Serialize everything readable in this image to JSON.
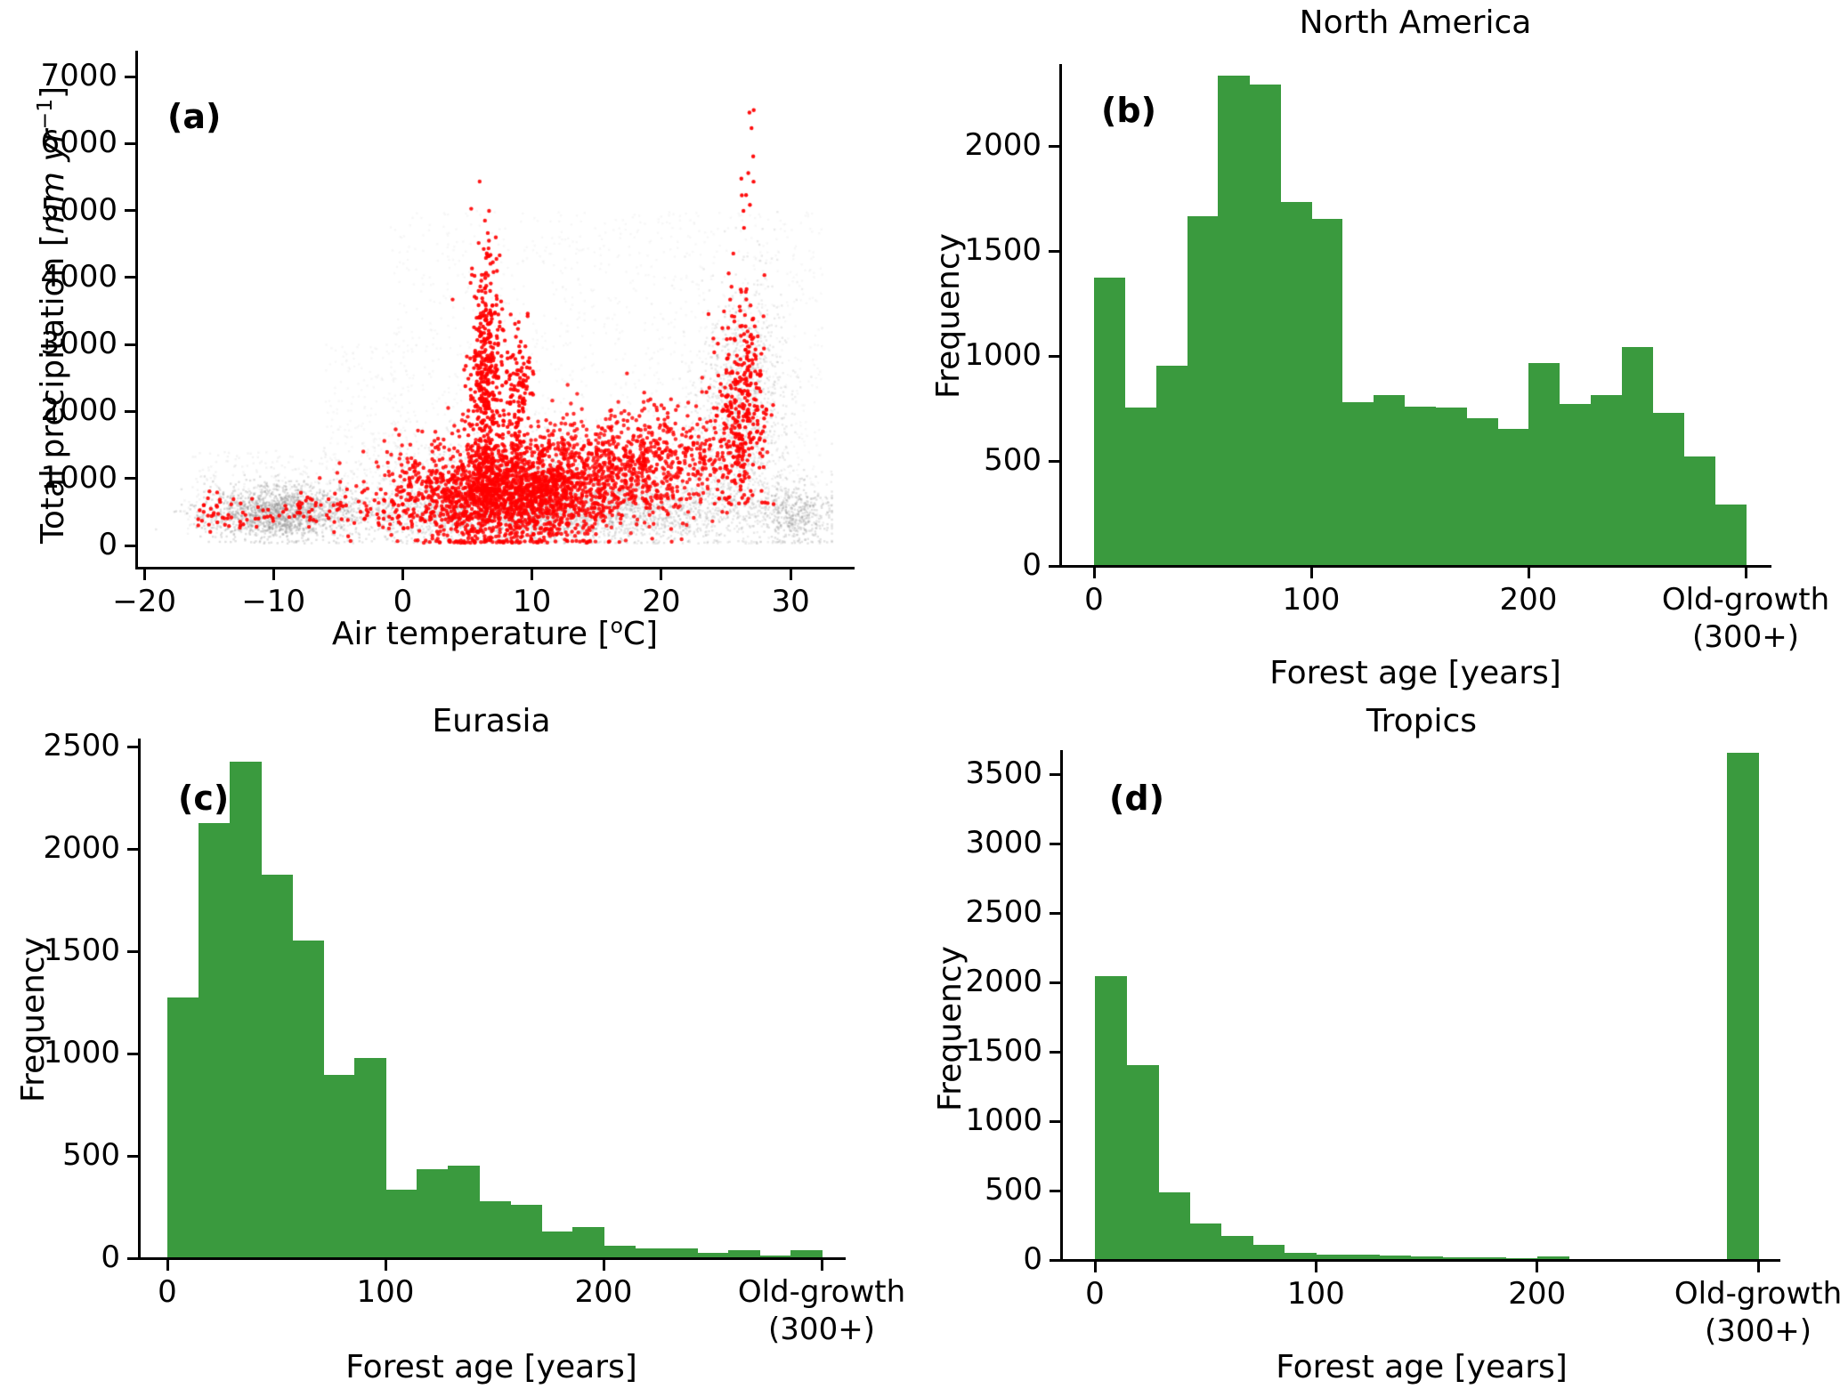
{
  "colors": {
    "bar_green": "#3a9a3e",
    "scatter_red": "#ff0000",
    "scatter_gray": "#8c8c8c",
    "axis_black": "#000000",
    "background": "#ffffff"
  },
  "chart_data": [
    {
      "type": "scatter",
      "panel_label": "(a)",
      "xlabel": {
        "pre": "Air temperature [",
        "sup": "o",
        "post": "C]"
      },
      "ylabel": {
        "pre": "Total precipitation [",
        "italic": "mm yr",
        "sup": "−1",
        "post": "]"
      },
      "x_ticks": [
        -20,
        -10,
        0,
        10,
        20,
        30
      ],
      "y_ticks": [
        0,
        1000,
        2000,
        3000,
        4000,
        5000,
        6000,
        7000
      ],
      "xlim": [
        -20.5,
        33.5
      ],
      "ylim": [
        0,
        7350
      ],
      "legend": "none",
      "grid": false,
      "description": "Dense gray cloud of all pixels (capped near 5000 mm) with red subset points; red plumes near 6.5C up to 5400 and near 26.5C up to 7000",
      "series": [
        {
          "name": "gray_points",
          "color_key": "scatter_gray",
          "clamp_y": [
            15,
            4995
          ],
          "clusters": [
            {
              "n": 1500,
              "x": -9.5,
              "sx": 2.8,
              "y": 480,
              "sy": 200,
              "a": 0.28
            },
            {
              "n": 2600,
              "x": 11,
              "sx": 8.5,
              "y": 450,
              "sy": 240,
              "a": 0.22
            },
            {
              "n": 1000,
              "x": 8,
              "sx": 5.5,
              "y": 1050,
              "sy": 320,
              "a": 0.15
            },
            {
              "n": 1400,
              "xu": [
                -1,
                32.5
              ],
              "yu": [
                350,
                4980
              ],
              "a": 0.07
            },
            {
              "n": 800,
              "x": 26.5,
              "sx": 1.6,
              "y": 2100,
              "sy": 950,
              "a": 0.18
            },
            {
              "n": 450,
              "x": 25.5,
              "sx": 2.0,
              "y": 1800,
              "sy": 800,
              "a": 0.15
            },
            {
              "n": 300,
              "xu": [
                -17,
                -4
              ],
              "yu": [
                150,
                1400
              ],
              "a": 0.1
            },
            {
              "n": 400,
              "x": 30.3,
              "sx": 1.3,
              "y": 420,
              "sy": 220,
              "a": 0.25
            },
            {
              "n": 600,
              "x": 18,
              "sx": 6,
              "y": 800,
              "sy": 300,
              "a": 0.15
            },
            {
              "n": 250,
              "xu": [
                -6,
                1
              ],
              "yu": [
                600,
                3000
              ],
              "a": 0.07
            }
          ]
        },
        {
          "name": "red_points",
          "color_key": "scatter_red",
          "clamp_y": [
            25,
            7015
          ],
          "clusters": [
            {
              "n": 2000,
              "x": 8,
              "sx": 4.2,
              "y": 750,
              "sy": 380,
              "a": 0.85
            },
            {
              "n": 700,
              "x": 15.5,
              "sx": 4,
              "y": 1150,
              "sy": 420,
              "a": 0.8
            },
            {
              "n": 450,
              "x": 6.4,
              "sx": 0.6,
              "y": 2400,
              "sy": 1050,
              "ymin": 800,
              "ymax": 5430,
              "a": 0.9
            },
            {
              "n": 130,
              "x": 8.9,
              "sx": 0.55,
              "y": 2300,
              "sy": 550,
              "ymax": 3450,
              "a": 0.9
            },
            {
              "n": 140,
              "xu": [
                -16,
                1
              ],
              "y": 500,
              "sy": 160,
              "a": 0.9
            },
            {
              "n": 320,
              "x": 26.2,
              "sx": 0.9,
              "y": 2100,
              "sy": 850,
              "ymin": 600,
              "ymax": 4350,
              "a": 0.9
            },
            {
              "n": 12,
              "x": 26.6,
              "sx": 0.4,
              "yu": [
                4400,
                7010
              ],
              "a": 0.95
            },
            {
              "n": 260,
              "xu": [
                17,
                26.5
              ],
              "y": 1300,
              "sy": 480,
              "a": 0.85
            }
          ]
        }
      ]
    },
    {
      "type": "bar",
      "title": "North America",
      "panel_label": "(b)",
      "xlabel": "Forest age [years]",
      "ylabel": "Frequency",
      "bin_edges_years": {
        "start": 0,
        "end": 300,
        "n_bins": 21
      },
      "values": [
        1370,
        750,
        950,
        1660,
        2330,
        2290,
        1730,
        1650,
        775,
        810,
        755,
        750,
        700,
        650,
        960,
        765,
        810,
        1040,
        725,
        515,
        290
      ],
      "x_ticks": [
        0,
        100,
        200
      ],
      "x_end_tick": {
        "line1": "Old-growth",
        "line2": "(300+)"
      },
      "y_ticks": [
        0,
        500,
        1000,
        1500,
        2000
      ],
      "ylim": [
        0,
        2400
      ],
      "grid": false
    },
    {
      "type": "bar",
      "title": "Eurasia",
      "panel_label": "(c)",
      "xlabel": "Forest age [years]",
      "ylabel": "Frequency",
      "bin_edges_years": {
        "start": 0,
        "end": 300,
        "n_bins": 21
      },
      "values": [
        1270,
        2120,
        2420,
        1870,
        1550,
        890,
        975,
        330,
        430,
        450,
        275,
        255,
        125,
        150,
        55,
        45,
        45,
        20,
        35,
        10,
        35
      ],
      "x_ticks": [
        0,
        100,
        200
      ],
      "x_end_tick": {
        "line1": "Old-growth",
        "line2": "(300+)"
      },
      "y_ticks": [
        0,
        500,
        1000,
        1500,
        2000,
        2500
      ],
      "ylim": [
        0,
        2530
      ],
      "grid": false
    },
    {
      "type": "bar",
      "title": "Tropics",
      "panel_label": "(d)",
      "xlabel": "Forest age [years]",
      "ylabel": "Frequency",
      "bin_edges_years": {
        "start": 0,
        "end": 300,
        "n_bins": 21
      },
      "values": [
        2040,
        1400,
        480,
        255,
        165,
        100,
        45,
        35,
        30,
        25,
        20,
        15,
        10,
        5,
        20,
        0,
        0,
        0,
        0,
        0,
        3650
      ],
      "x_ticks": [
        0,
        100,
        200
      ],
      "x_end_tick": {
        "line1": "Old-growth",
        "line2": "(300+)"
      },
      "y_ticks": [
        0,
        500,
        1000,
        1500,
        2000,
        2500,
        3000,
        3500
      ],
      "ylim": [
        0,
        3720
      ],
      "grid": false
    }
  ]
}
